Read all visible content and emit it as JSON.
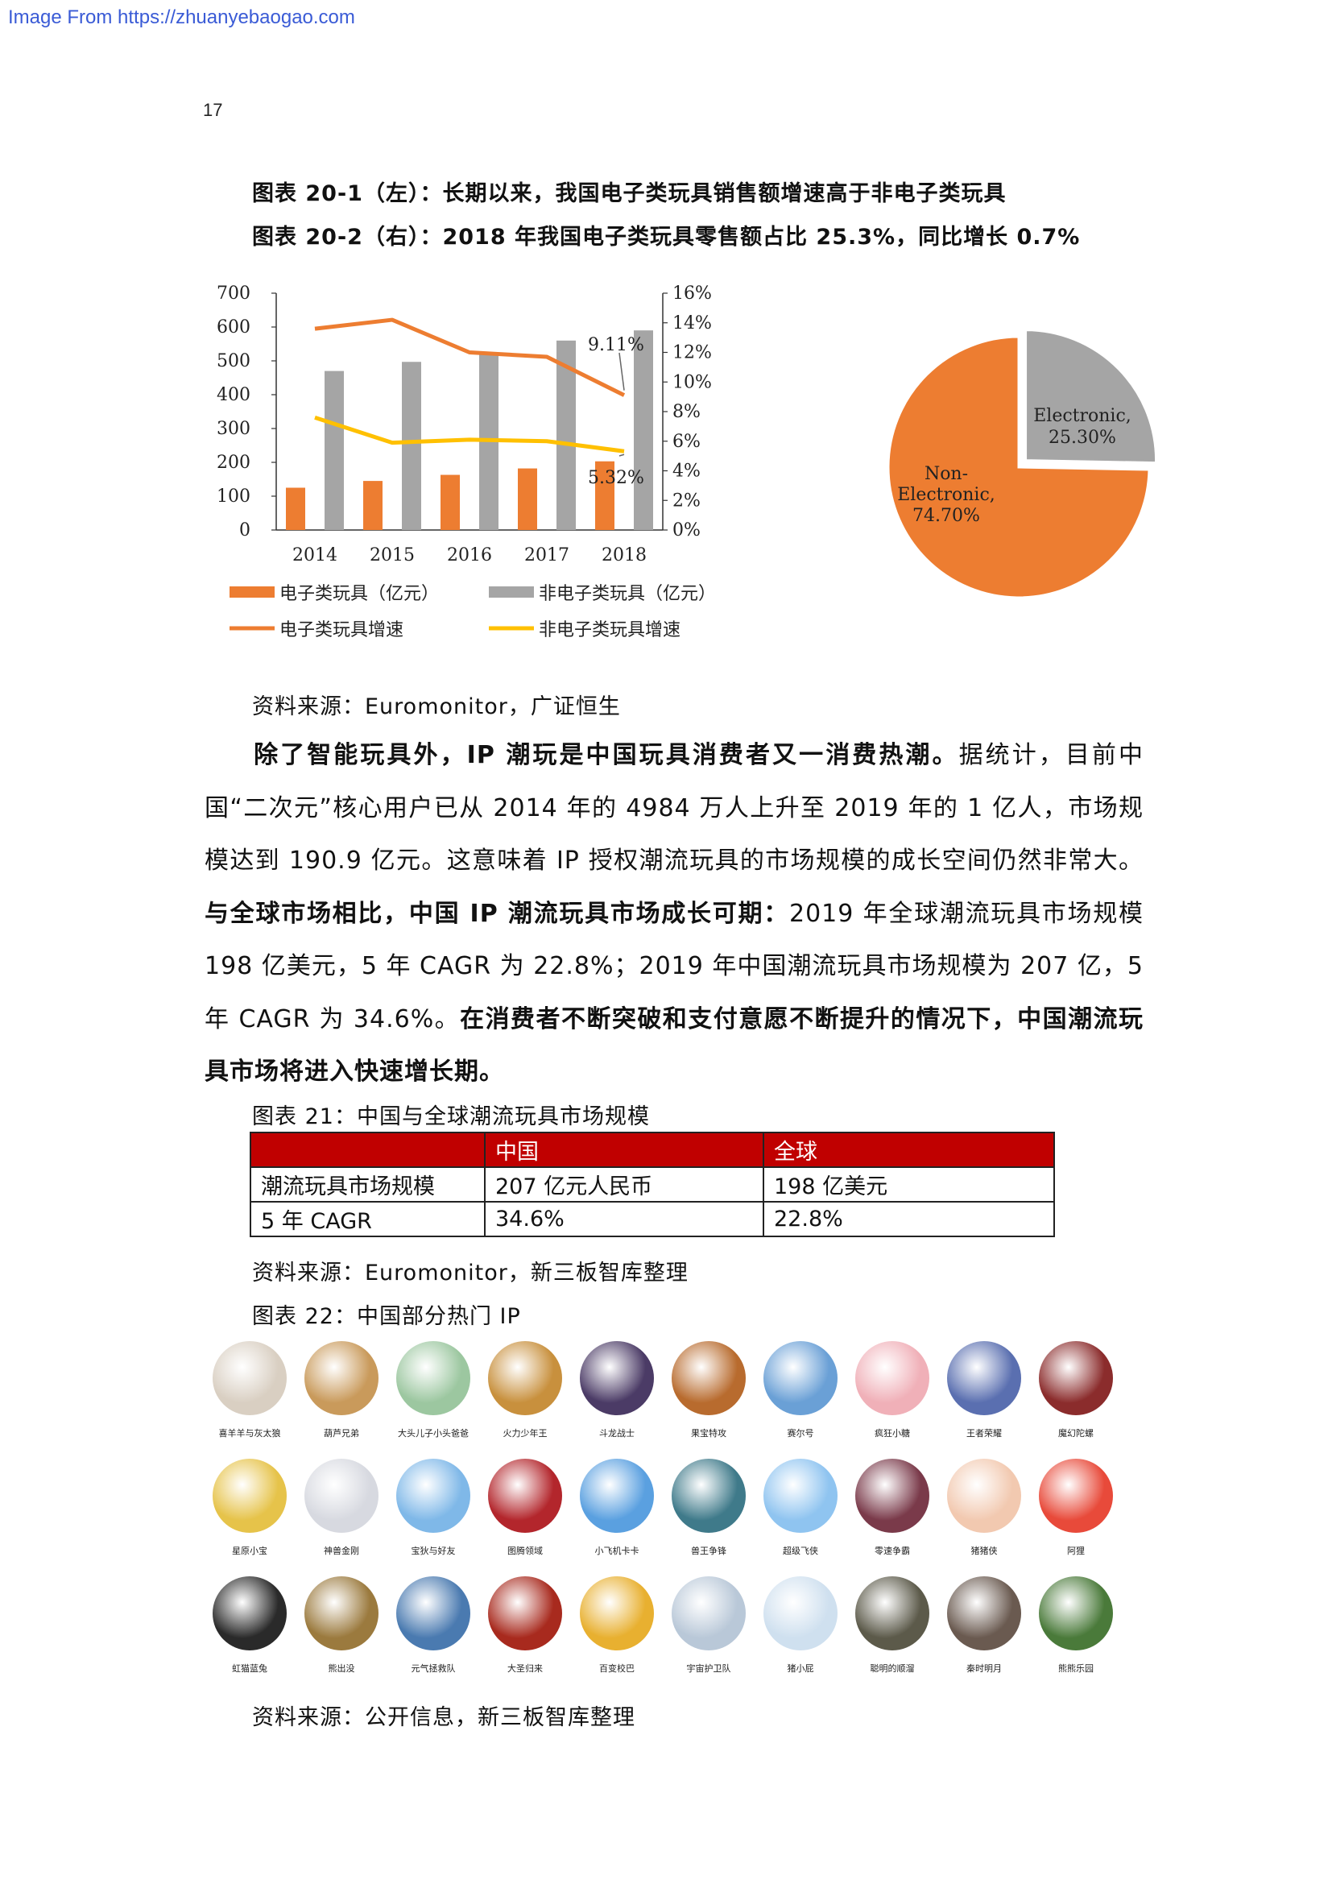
{
  "header": {
    "watermark": "Image From https://zhuanyebaogao.com",
    "page_number": "17"
  },
  "figure20": {
    "title_left": "图表 20-1（左）：长期以来，我国电子类玩具销售额增速高于非电子类玩具",
    "title_right": "图表 20-2（右）：2018 年我国电子类玩具零售额占比 25.3%，同比增长 0.7%",
    "source": "资料来源：Euromonitor，广证恒生"
  },
  "chart_data": [
    {
      "type": "bar",
      "categories": [
        "2014",
        "2015",
        "2016",
        "2017",
        "2018"
      ],
      "series": [
        {
          "name": "电子类玩具（亿元）",
          "kind": "bar",
          "axis": "left",
          "color": "#ed7d31",
          "values": [
            125,
            145,
            163,
            182,
            203
          ]
        },
        {
          "name": "非电子类玩具（亿元）",
          "kind": "bar",
          "axis": "left",
          "color": "#a5a5a5",
          "values": [
            470,
            497,
            520,
            560,
            590
          ]
        },
        {
          "name": "电子类玩具增速",
          "kind": "line",
          "axis": "right",
          "color": "#ed7d31",
          "values": [
            13.6,
            14.2,
            12.0,
            11.7,
            9.11
          ]
        },
        {
          "name": "非电子类玩具增速",
          "kind": "line",
          "axis": "right",
          "color": "#ffc000",
          "values": [
            7.6,
            5.9,
            6.1,
            6.0,
            5.32
          ]
        }
      ],
      "left_ticks": [
        "700",
        "600",
        "500",
        "400",
        "300",
        "200",
        "100",
        "0"
      ],
      "right_ticks": [
        "16%",
        "14%",
        "12%",
        "10%",
        "8%",
        "6%",
        "4%",
        "2%",
        "0%"
      ],
      "ylim_left": [
        0,
        700
      ],
      "ylim_right": [
        0,
        16
      ],
      "annotations": [
        "9.11%",
        "5.32%"
      ],
      "legend_position": "bottom"
    },
    {
      "type": "pie",
      "slices": [
        {
          "label": "Electronic,",
          "pct_label": "25.30%",
          "value": 25.3,
          "color": "#a5a5a5"
        },
        {
          "label": "Non-Electronic,",
          "label_line1": "Non-",
          "label_line2": "Electronic,",
          "pct_label": "74.70%",
          "value": 74.7,
          "color": "#ed7d31"
        }
      ]
    }
  ],
  "paragraph": {
    "s1": "除了智能玩具外，IP 潮玩是中国玩具消费者又一消费热潮。",
    "s2": "据统计，目前中国“二次元”核心用户已从 2014 年的 4984 万人上升至 2019 年的 1 亿人，市场规模达到 190.9 亿元。这意味着 IP 授权潮流玩具的市场规模的成长空间仍然非常大。",
    "s3": "与全球市场相比，中国 IP 潮流玩具市场成长可期：",
    "s4": "2019 年全球潮流玩具市场规模 198 亿美元，5 年 CAGR 为 22.8%；2019 年中国潮流玩具市场规模为 207 亿，5 年 CAGR 为 34.6%。",
    "s5": "在消费者不断突破和支付意愿不断提升的情况下，中国潮流玩具市场将进入快速增长期。"
  },
  "figure21": {
    "title": "图表 21：中国与全球潮流玩具市场规模",
    "headers": [
      "",
      "中国",
      "全球"
    ],
    "rows": [
      [
        "潮流玩具市场规模",
        "207 亿元人民币",
        "198 亿美元"
      ],
      [
        "5 年 CAGR",
        "34.6%",
        "22.8%"
      ]
    ],
    "source": "资料来源：Euromonitor，新三板智库整理"
  },
  "figure22": {
    "title": "图表 22：中国部分热门 IP",
    "items": [
      {
        "label": "喜羊羊与灰太狼",
        "color": "#d9cfc2"
      },
      {
        "label": "葫芦兄弟",
        "color": "#c99a5b"
      },
      {
        "label": "大头儿子小头爸爸",
        "color": "#9cc7a0"
      },
      {
        "label": "火力少年王",
        "color": "#c8903d"
      },
      {
        "label": "斗龙战士",
        "color": "#4b3b66"
      },
      {
        "label": "果宝特攻",
        "color": "#b86b2e"
      },
      {
        "label": "赛尔号",
        "color": "#6aa0d6"
      },
      {
        "label": "疯狂小糖",
        "color": "#f0b0b8"
      },
      {
        "label": "王者荣耀",
        "color": "#5a6fb0"
      },
      {
        "label": "魔幻陀螺",
        "color": "#8b2c2c"
      },
      {
        "label": "星原小宝",
        "color": "#e6c34a"
      },
      {
        "label": "神兽金刚",
        "color": "#d7d9e0"
      },
      {
        "label": "宝狄与好友",
        "color": "#7fb8e8"
      },
      {
        "label": "图腾领域",
        "color": "#b3262c"
      },
      {
        "label": "小飞机卡卡",
        "color": "#5aa0e0"
      },
      {
        "label": "兽王争锋",
        "color": "#3f7a8a"
      },
      {
        "label": "超级飞侠",
        "color": "#8fc4f0"
      },
      {
        "label": "零速争霸",
        "color": "#7a3a4a"
      },
      {
        "label": "猪猪侠",
        "color": "#f2c9b0"
      },
      {
        "label": "阿狸",
        "color": "#e84a3a"
      },
      {
        "label": "虹猫蓝兔",
        "color": "#2a2a2a"
      },
      {
        "label": "熊出没",
        "color": "#9b7a3e"
      },
      {
        "label": "元气拯救队",
        "color": "#4a7ab0"
      },
      {
        "label": "大圣归来",
        "color": "#a82a1e"
      },
      {
        "label": "百变校巴",
        "color": "#e8b030"
      },
      {
        "label": "宇宙护卫队",
        "color": "#b9c8d8"
      },
      {
        "label": "猪小屁",
        "color": "#cfe0ef"
      },
      {
        "label": "聪明的顺溜",
        "color": "#5c5a4a"
      },
      {
        "label": "秦时明月",
        "color": "#6a5a50"
      },
      {
        "label": "熊熊乐园",
        "color": "#4a7a3a"
      }
    ],
    "source": "资料来源：公开信息，新三板智库整理"
  }
}
